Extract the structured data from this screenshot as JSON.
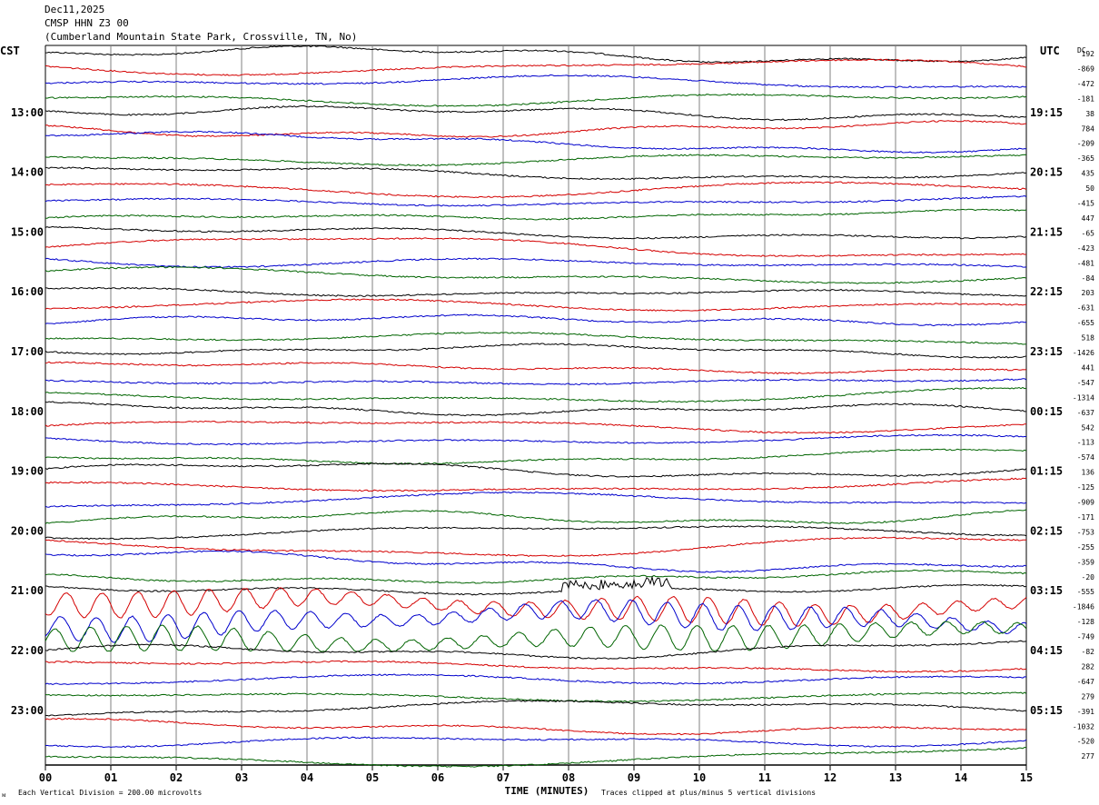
{
  "header": {
    "date": "Dec11,2025",
    "station": "CMSP HHN Z3 00",
    "location": "(Cumberland Mountain State Park, Crossville, TN, No)"
  },
  "left_timezone": "CST",
  "right_timezone": "UTC",
  "dc_label": "DC",
  "footer": {
    "scale_note": "Each Vertical Division = 200.00 microvolts",
    "clip_note": "Traces clipped at plus/minus 5 vertical divisions",
    "logo_mark": "ᴍ"
  },
  "colors": {
    "trace_cycle": [
      "#000000",
      "#d40000",
      "#0000cc",
      "#006400"
    ],
    "grid": "#808080"
  },
  "chart_data": {
    "type": "line",
    "title": "CMSP HHN Z3 00",
    "xlabel": "TIME (MINUTES)",
    "xlim": [
      0,
      15
    ],
    "x_ticks": [
      "00",
      "01",
      "02",
      "03",
      "04",
      "05",
      "06",
      "07",
      "08",
      "09",
      "10",
      "11",
      "12",
      "13",
      "14",
      "15"
    ],
    "grid": true,
    "traces_per_hour": 4,
    "trace_minutes": 15,
    "left_hour_labels": [
      "13:00",
      "14:00",
      "15:00",
      "16:00",
      "17:00",
      "18:00",
      "19:00",
      "20:00",
      "21:00",
      "22:00",
      "23:00"
    ],
    "right_hour_labels": [
      "19:15",
      "20:15",
      "21:15",
      "22:15",
      "23:15",
      "00:15",
      "01:15",
      "02:15",
      "03:15",
      "04:15",
      "05:15"
    ],
    "dc_offsets": [
      192,
      -869,
      -472,
      -181,
      38,
      784,
      -209,
      -365,
      435,
      50,
      -415,
      447,
      -65,
      -423,
      -481,
      -84,
      203,
      -631,
      -655,
      518,
      -1426,
      441,
      -547,
      -1314,
      -637,
      542,
      -113,
      -574,
      136,
      -125,
      -909,
      -171,
      -753,
      -255,
      -359,
      -20,
      -555,
      -1846,
      -128,
      -749,
      -82,
      282,
      -647,
      279,
      -391,
      -1032,
      -520,
      277
    ],
    "event": {
      "label": "",
      "start_trace": 36,
      "start_minute": 7.9,
      "large_amplitude_traces": [
        37,
        38,
        39
      ]
    }
  }
}
